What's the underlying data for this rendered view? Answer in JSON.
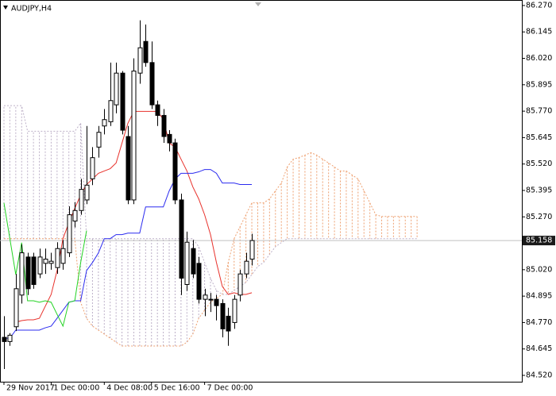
{
  "chart_data": {
    "type": "candlestick",
    "title": "AUDJPY,H4",
    "ylim": [
      84.49,
      86.296
    ],
    "xlim": [
      -0.67,
      87.75
    ],
    "yticks": [
      {
        "value": 86.27,
        "label": "86.270"
      },
      {
        "value": 86.145,
        "label": "86.145"
      },
      {
        "value": 86.02,
        "label": "86.020"
      },
      {
        "value": 85.895,
        "label": "85.895"
      },
      {
        "value": 85.77,
        "label": "85.770"
      },
      {
        "value": 85.645,
        "label": "85.645"
      },
      {
        "value": 85.52,
        "label": "85.520"
      },
      {
        "value": 85.395,
        "label": "85.395"
      },
      {
        "value": 85.27,
        "label": "85.270"
      },
      {
        "value": 85.02,
        "label": "85.020"
      },
      {
        "value": 84.895,
        "label": "84.895"
      },
      {
        "value": 84.77,
        "label": "84.770"
      },
      {
        "value": 84.645,
        "label": "84.645"
      },
      {
        "value": 84.52,
        "label": "84.520"
      }
    ],
    "xticks": [
      {
        "value": 0,
        "label": "29 Nov 2017"
      },
      {
        "value": 8,
        "label": "1 Dec 00:00"
      },
      {
        "value": 17,
        "label": "4 Dec 08:00"
      },
      {
        "value": 25,
        "label": "5 Dec 16:00"
      },
      {
        "value": 34,
        "label": "7 Dec 00:00"
      }
    ],
    "last_price": 85.158,
    "up_color": "#ffffff",
    "down_color": "#000000",
    "open": [
      84.7,
      84.68,
      84.75,
      84.9,
      85.08,
      85.08,
      85.0,
      85.05,
      85.05,
      85.03,
      85.05,
      85.1,
      85.25,
      85.3,
      85.35,
      85.45,
      85.6,
      85.7,
      85.72,
      85.8,
      85.95,
      85.65,
      85.35,
      85.95,
      86.1,
      86.0,
      85.8,
      85.75,
      85.66,
      85.62,
      85.35,
      84.95,
      85.12,
      85.05,
      84.88,
      84.88,
      84.88,
      84.86,
      84.8,
      84.77,
      84.9,
      85.0,
      85.07
    ],
    "high": [
      84.8,
      84.72,
      85.0,
      85.14,
      85.1,
      85.1,
      85.12,
      85.12,
      85.1,
      85.15,
      85.16,
      85.32,
      85.34,
      85.45,
      85.7,
      85.6,
      85.7,
      85.78,
      86.0,
      86.0,
      85.96,
      85.7,
      86.02,
      86.2,
      86.18,
      86.1,
      85.82,
      85.78,
      85.68,
      85.64,
      85.38,
      85.2,
      85.16,
      85.08,
      84.93,
      84.91,
      84.9,
      84.88,
      84.84,
      84.9,
      85.02,
      85.1,
      85.19
    ],
    "low": [
      84.55,
      84.66,
      84.73,
      84.86,
      84.9,
      84.93,
      84.98,
      85.0,
      85.02,
      85.0,
      85.02,
      85.08,
      85.22,
      85.28,
      85.33,
      85.42,
      85.55,
      85.66,
      85.7,
      85.76,
      85.66,
      85.33,
      85.33,
      85.9,
      85.98,
      85.78,
      85.7,
      85.62,
      85.58,
      85.33,
      84.9,
      84.92,
      84.98,
      84.86,
      84.8,
      84.82,
      84.78,
      84.7,
      84.66,
      84.74,
      84.87,
      84.98,
      85.04
    ],
    "close": [
      84.68,
      84.71,
      84.93,
      85.1,
      84.93,
      84.95,
      85.08,
      85.07,
      85.06,
      85.12,
      85.12,
      85.28,
      85.3,
      85.4,
      85.42,
      85.55,
      85.67,
      85.73,
      85.82,
      85.95,
      85.68,
      85.35,
      85.96,
      86.07,
      86.0,
      85.8,
      85.75,
      85.65,
      85.62,
      85.35,
      84.98,
      85.15,
      85.0,
      84.88,
      84.9,
      84.88,
      84.85,
      84.74,
      84.73,
      84.88,
      85.0,
      85.06,
      85.158
    ],
    "lines": [
      {
        "color": "#e8322c",
        "values": [
          null,
          null,
          84.771,
          84.779,
          84.783,
          84.783,
          84.79,
          84.847,
          84.903,
          85.016,
          85.167,
          85.242,
          85.31,
          85.374,
          85.423,
          85.449,
          85.476,
          85.487,
          85.498,
          85.525,
          85.619,
          85.713,
          85.769,
          85.769,
          85.769,
          85.769,
          85.769,
          85.732,
          85.619,
          85.6,
          85.543,
          85.487,
          85.412,
          85.355,
          85.28,
          85.186,
          85.054,
          84.941,
          84.903,
          84.911,
          84.903,
          84.903,
          84.911
        ]
      },
      {
        "color": "#2b2bef",
        "values": [
          84.696,
          84.696,
          84.734,
          84.734,
          84.734,
          84.734,
          84.734,
          84.745,
          84.753,
          84.79,
          84.828,
          84.866,
          84.873,
          84.873,
          85.016,
          85.054,
          85.099,
          85.167,
          85.167,
          85.186,
          85.186,
          85.193,
          85.193,
          85.193,
          85.317,
          85.317,
          85.317,
          85.317,
          85.393,
          85.449,
          85.476,
          85.476,
          85.476,
          85.483,
          85.494,
          85.494,
          85.476,
          85.43,
          85.43,
          85.43,
          85.423,
          85.423,
          85.423
        ]
      },
      {
        "color": "#22d322",
        "values": [
          85.336,
          85.167,
          84.997,
          85.148,
          84.873,
          84.873,
          84.866,
          84.873,
          84.866,
          84.809,
          84.753,
          84.866,
          84.873,
          85.054,
          85.205
        ]
      }
    ],
    "cloud": {
      "up_color": "#eea070",
      "down_color": "#bdb0c8",
      "span_a": [
        85.167,
        85.167,
        85.167,
        85.167,
        85.167,
        85.167,
        85.167,
        85.167,
        85.167,
        85.167,
        85.167,
        85.167,
        85.167,
        84.866,
        84.79,
        84.753,
        84.734,
        84.715,
        84.696,
        84.677,
        84.659,
        84.659,
        84.659,
        84.659,
        84.659,
        84.659,
        84.659,
        84.659,
        84.659,
        84.659,
        84.659,
        84.677,
        84.715,
        84.79,
        84.828,
        84.866,
        84.885,
        84.903,
        85.054,
        85.167,
        85.223,
        85.28,
        85.336,
        85.336,
        85.336,
        85.355,
        85.393,
        85.43,
        85.506,
        85.543,
        85.551,
        85.562,
        85.574,
        85.562,
        85.543,
        85.525,
        85.506,
        85.487,
        85.487,
        85.468,
        85.449,
        85.393,
        85.336,
        85.28,
        85.272,
        85.272,
        85.272,
        85.272,
        85.272,
        85.272,
        85.272
      ],
      "span_b": [
        85.796,
        85.796,
        85.796,
        85.796,
        85.675,
        85.675,
        85.675,
        85.675,
        85.675,
        85.675,
        85.675,
        85.675,
        85.675,
        85.713,
        85.167,
        85.167,
        85.167,
        85.167,
        85.167,
        85.167,
        85.167,
        85.167,
        85.167,
        85.167,
        85.167,
        85.167,
        85.167,
        85.167,
        85.167,
        85.167,
        85.167,
        85.167,
        85.167,
        85.129,
        85.054,
        84.979,
        84.922,
        84.903,
        84.903,
        84.922,
        84.941,
        84.96,
        84.997,
        85.035,
        85.054,
        85.092,
        85.129,
        85.148,
        85.167,
        85.167,
        85.167,
        85.167,
        85.167,
        85.167,
        85.167,
        85.167,
        85.167,
        85.167,
        85.167,
        85.167,
        85.167,
        85.167,
        85.167,
        85.167,
        85.167,
        85.167,
        85.167,
        85.167,
        85.167,
        85.167,
        85.167
      ]
    }
  }
}
